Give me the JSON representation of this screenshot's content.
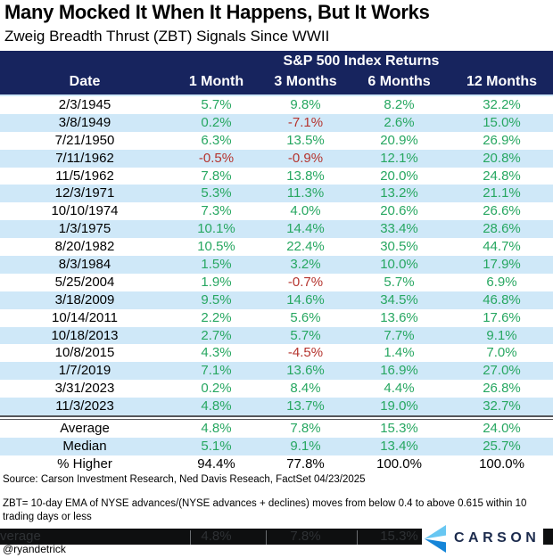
{
  "title": "Many Mocked It When It Happens, But It Works",
  "subtitle": "Zweig Breadth Thrust (ZBT) Signals Since WWII",
  "chart_data": {
    "type": "table",
    "title": "Many Mocked It When It Happens, But It Works",
    "subtitle": "Zweig Breadth Thrust (ZBT) Signals Since WWII",
    "group_header": "S&P 500 Index Returns",
    "columns": [
      "Date",
      "1 Month",
      "3 Months",
      "6 Months",
      "12 Months"
    ],
    "rows": [
      {
        "date": "2/3/1945",
        "values": [
          "5.7%",
          "9.8%",
          "8.2%",
          "32.2%"
        ]
      },
      {
        "date": "3/8/1949",
        "values": [
          "0.2%",
          "-7.1%",
          "2.6%",
          "15.0%"
        ]
      },
      {
        "date": "7/21/1950",
        "values": [
          "6.3%",
          "13.5%",
          "20.9%",
          "26.9%"
        ]
      },
      {
        "date": "7/11/1962",
        "values": [
          "-0.5%",
          "-0.9%",
          "12.1%",
          "20.8%"
        ]
      },
      {
        "date": "11/5/1962",
        "values": [
          "7.8%",
          "13.8%",
          "20.0%",
          "24.8%"
        ]
      },
      {
        "date": "12/3/1971",
        "values": [
          "5.3%",
          "11.3%",
          "13.2%",
          "21.1%"
        ]
      },
      {
        "date": "10/10/1974",
        "values": [
          "7.3%",
          "4.0%",
          "20.6%",
          "26.6%"
        ]
      },
      {
        "date": "1/3/1975",
        "values": [
          "10.1%",
          "14.4%",
          "33.4%",
          "28.6%"
        ]
      },
      {
        "date": "8/20/1982",
        "values": [
          "10.5%",
          "22.4%",
          "30.5%",
          "44.7%"
        ]
      },
      {
        "date": "8/3/1984",
        "values": [
          "1.5%",
          "3.2%",
          "10.0%",
          "17.9%"
        ]
      },
      {
        "date": "5/25/2004",
        "values": [
          "1.9%",
          "-0.7%",
          "5.7%",
          "6.9%"
        ]
      },
      {
        "date": "3/18/2009",
        "values": [
          "9.5%",
          "14.6%",
          "34.5%",
          "46.8%"
        ]
      },
      {
        "date": "10/14/2011",
        "values": [
          "2.2%",
          "5.6%",
          "13.6%",
          "17.6%"
        ]
      },
      {
        "date": "10/18/2013",
        "values": [
          "2.7%",
          "5.7%",
          "7.7%",
          "9.1%"
        ]
      },
      {
        "date": "10/8/2015",
        "values": [
          "4.3%",
          "-4.5%",
          "1.4%",
          "7.0%"
        ]
      },
      {
        "date": "1/7/2019",
        "values": [
          "7.1%",
          "13.6%",
          "16.9%",
          "27.0%"
        ]
      },
      {
        "date": "3/31/2023",
        "values": [
          "0.2%",
          "8.4%",
          "4.4%",
          "26.8%"
        ]
      },
      {
        "date": "11/3/2023",
        "values": [
          "4.8%",
          "13.7%",
          "19.0%",
          "32.7%"
        ]
      }
    ],
    "summary": [
      {
        "label": "Average",
        "values": [
          "4.8%",
          "7.8%",
          "15.3%",
          "24.0%"
        ],
        "value_color": "green"
      },
      {
        "label": "Median",
        "values": [
          "5.1%",
          "9.1%",
          "13.4%",
          "25.7%"
        ],
        "value_color": "green"
      },
      {
        "label": "% Higher",
        "values": [
          "94.4%",
          "77.8%",
          "100.0%",
          "100.0%"
        ],
        "value_color": "black"
      }
    ]
  },
  "source": "Source: Carson Investment Research, Ned Davis Reseach, FactSet 04/23/2025",
  "footnote": "ZBT= 10-day EMA of NYSE advances/(NYSE advances + declines) moves from below 0.4 to above 0.615 within 10 trading days or less",
  "redacted_bar": {
    "ghost_cells": [
      "verage",
      "4.8%",
      "7.8%",
      "15.3%"
    ]
  },
  "logo": {
    "text": "CARSON"
  },
  "handle": "@ryandetrick",
  "colors": {
    "header_navy": "#17245e",
    "row_stripe_blue": "#cfe8f8",
    "positive_green": "#27a761",
    "negative_red": "#b5342e",
    "logo_light_blue": "#68c7f2",
    "logo_dark_blue": "#1585d8",
    "logo_wordmark_navy": "#1c2b4d",
    "bottom_bar_black": "#0e0f10"
  }
}
